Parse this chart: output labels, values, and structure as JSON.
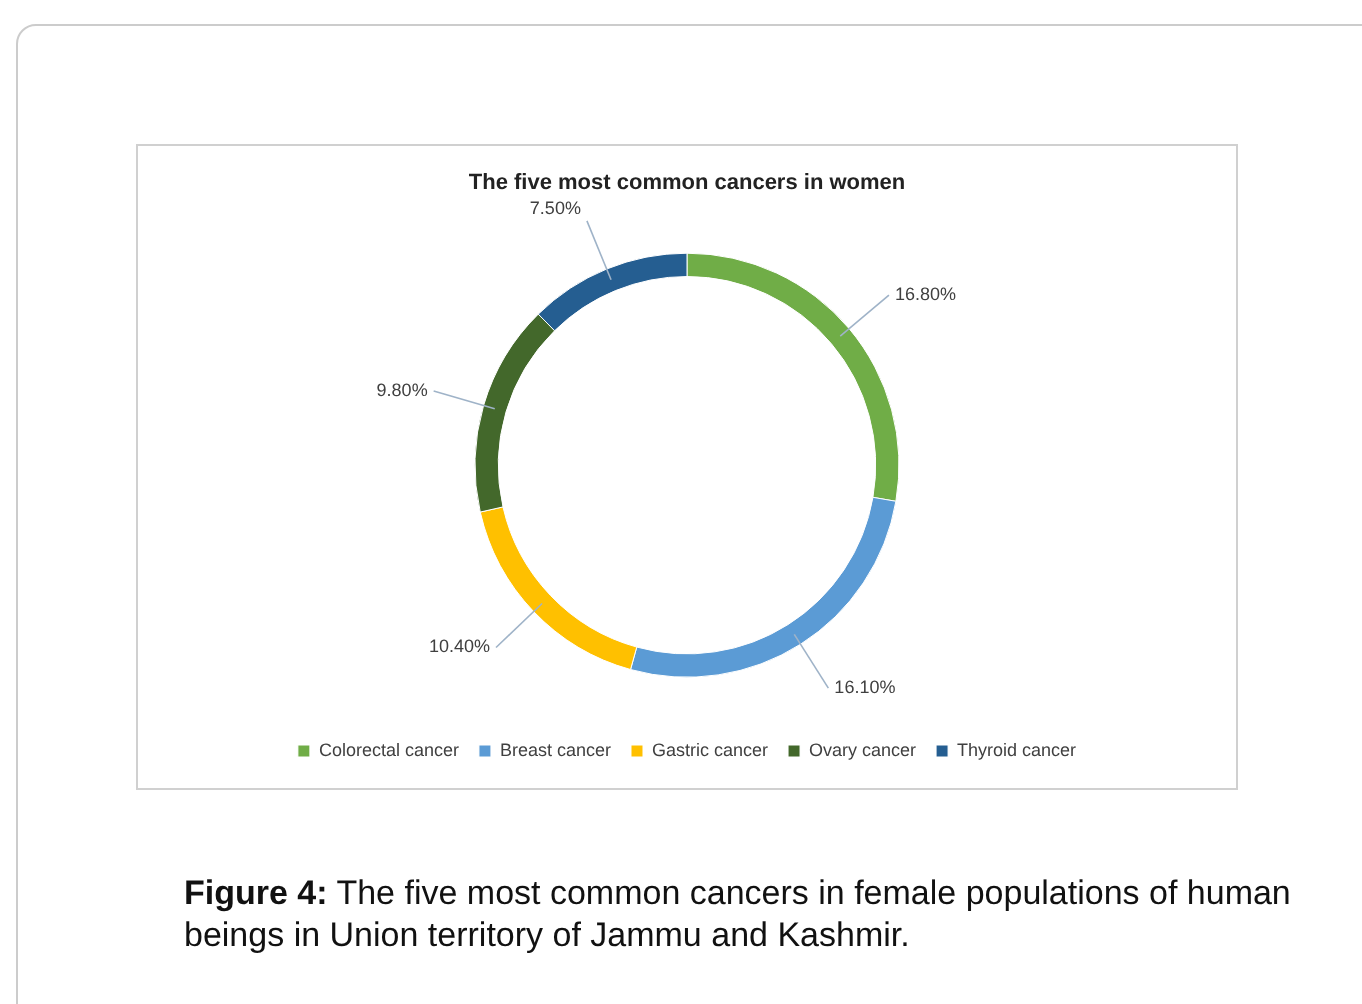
{
  "chart_data": {
    "type": "donut",
    "title": "The five most common cancers in women",
    "categories": [
      "Colorectal cancer",
      "Breast cancer",
      "Gastric cancer",
      "Ovary cancer",
      "Thyroid cancer"
    ],
    "values": [
      16.8,
      16.1,
      10.4,
      9.8,
      7.5
    ],
    "colors": [
      "#70ad47",
      "#5b9bd5",
      "#ffc000",
      "#43682b",
      "#255e91"
    ],
    "value_labels": [
      "16.80%",
      "16.10%",
      "10.40%",
      "9.80%",
      "7.50%"
    ],
    "legend": "bottom",
    "annotations": [
      "Figure 4: The five most common cancers in female populations of human beings in Union territory of Jammu and Kashmir."
    ]
  }
}
